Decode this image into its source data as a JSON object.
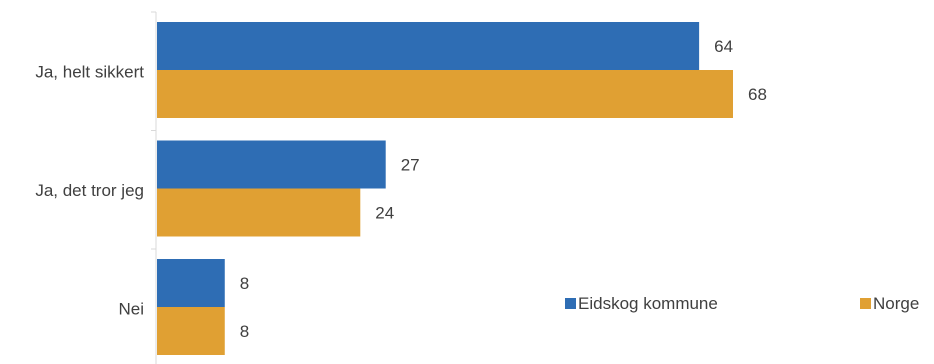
{
  "chart_data": {
    "type": "bar",
    "orientation": "horizontal",
    "categories": [
      "Ja, helt sikkert",
      "Ja, det tror jeg",
      "Nei"
    ],
    "series": [
      {
        "name": "Eidskog kommune",
        "values": [
          64,
          27,
          8
        ],
        "color": "#2E6DB4"
      },
      {
        "name": "Norge",
        "values": [
          68,
          24,
          8
        ],
        "color": "#E0A033"
      }
    ],
    "data_labels": true,
    "grid": false,
    "legend_position": "bottom-right"
  }
}
